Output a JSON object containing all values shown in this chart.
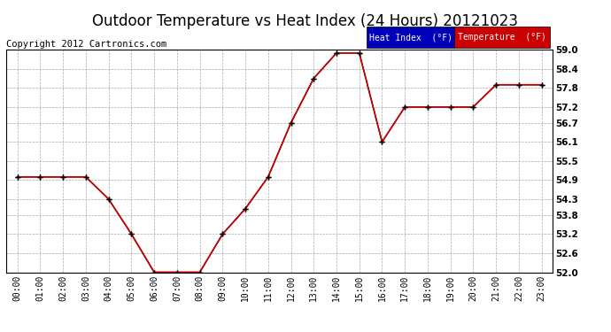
{
  "title": "Outdoor Temperature vs Heat Index (24 Hours) 20121023",
  "copyright": "Copyright 2012 Cartronics.com",
  "x_labels": [
    "00:00",
    "01:00",
    "02:00",
    "03:00",
    "04:00",
    "05:00",
    "06:00",
    "07:00",
    "08:00",
    "09:00",
    "10:00",
    "11:00",
    "12:00",
    "13:00",
    "14:00",
    "15:00",
    "16:00",
    "17:00",
    "18:00",
    "19:00",
    "20:00",
    "21:00",
    "22:00",
    "23:00"
  ],
  "temperature_data": [
    55.0,
    55.0,
    55.0,
    55.0,
    54.3,
    53.2,
    52.0,
    52.0,
    52.0,
    53.2,
    54.0,
    55.0,
    56.7,
    58.1,
    58.9,
    58.9,
    56.1,
    57.2,
    57.2,
    57.2,
    57.2,
    57.9,
    57.9,
    57.9
  ],
  "heat_index_data": [
    55.0,
    55.0,
    55.0,
    55.0,
    54.3,
    53.2,
    52.0,
    52.0,
    52.0,
    53.2,
    54.0,
    55.0,
    56.7,
    58.1,
    58.9,
    58.9,
    56.1,
    57.2,
    57.2,
    57.2,
    57.2,
    57.9,
    57.9,
    57.9
  ],
  "temp_color": "#cc0000",
  "heat_index_color": "#000000",
  "ylim_min": 52.0,
  "ylim_max": 59.0,
  "yticks": [
    52.0,
    52.6,
    53.2,
    53.8,
    54.3,
    54.9,
    55.5,
    56.1,
    56.7,
    57.2,
    57.8,
    58.4,
    59.0
  ],
  "bg_color": "#ffffff",
  "grid_color": "#aaaaaa",
  "title_fontsize": 12,
  "copyright_fontsize": 7.5,
  "legend_heat_bg": "#0000bb",
  "legend_temp_bg": "#cc0000",
  "legend_text_color": "#ffffff"
}
